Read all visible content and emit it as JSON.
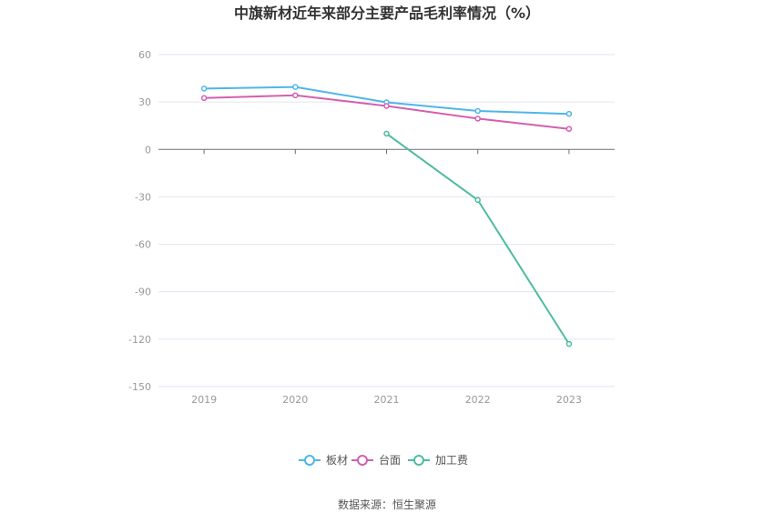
{
  "chart_data": {
    "type": "line",
    "title": "中旗新材近年来部分主要产品毛利率情况（%）",
    "categories": [
      "2019",
      "2020",
      "2021",
      "2022",
      "2023"
    ],
    "ylim": [
      -150,
      60
    ],
    "yticks": [
      "60",
      "30",
      "0",
      "-30",
      "-60",
      "-90",
      "-120",
      "-150"
    ],
    "ytick_values": [
      60,
      30,
      0,
      -30,
      -60,
      -90,
      -120,
      -150
    ],
    "grid": true,
    "legend_position": "bottom",
    "series": [
      {
        "name": "板材",
        "color": "#4db6ea",
        "values": [
          38.5,
          39.5,
          29.8,
          24.3,
          22.5
        ]
      },
      {
        "name": "台面",
        "color": "#d45fae",
        "values": [
          32.5,
          34.2,
          27.5,
          19.5,
          13.0
        ]
      },
      {
        "name": "加工费",
        "color": "#4cbca0",
        "values": [
          null,
          null,
          10.0,
          -32.0,
          -123.0
        ]
      }
    ]
  },
  "source_text": "数据来源：恒生聚源"
}
